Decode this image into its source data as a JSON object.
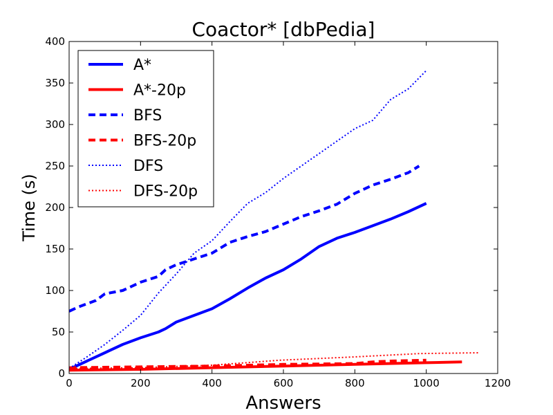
{
  "chart_data": {
    "type": "line",
    "title": "Coactor* [dbPedia]",
    "xlabel": "Answers",
    "ylabel": "Time (s)",
    "xlim": [
      0,
      1200
    ],
    "ylim": [
      0,
      400
    ],
    "xticks": [
      0,
      200,
      400,
      600,
      800,
      1000,
      1200
    ],
    "yticks": [
      0,
      50,
      100,
      150,
      200,
      250,
      300,
      350,
      400
    ],
    "legend_position": "top-left",
    "grid": false,
    "series": [
      {
        "name": "A*",
        "color": "#0000ff",
        "style": "solid",
        "x": [
          0,
          50,
          100,
          150,
          200,
          250,
          270,
          300,
          350,
          400,
          450,
          500,
          550,
          600,
          650,
          700,
          750,
          800,
          850,
          900,
          950,
          1000
        ],
        "y": [
          5,
          15,
          25,
          35,
          43,
          50,
          54,
          62,
          70,
          78,
          90,
          103,
          115,
          125,
          138,
          153,
          163,
          170,
          178,
          186,
          195,
          205
        ]
      },
      {
        "name": "A*-20p",
        "color": "#ff0000",
        "style": "solid",
        "x": [
          0,
          200,
          400,
          600,
          800,
          1000,
          1100
        ],
        "y": [
          4,
          5,
          7,
          9,
          11,
          13,
          14
        ]
      },
      {
        "name": "BFS",
        "color": "#0000ff",
        "style": "dashed",
        "x": [
          0,
          25,
          75,
          100,
          150,
          200,
          250,
          270,
          300,
          350,
          400,
          450,
          500,
          550,
          600,
          650,
          700,
          750,
          800,
          850,
          900,
          950,
          980
        ],
        "y": [
          75,
          80,
          88,
          96,
          100,
          110,
          117,
          125,
          131,
          138,
          145,
          158,
          165,
          171,
          180,
          189,
          196,
          204,
          217,
          227,
          234,
          242,
          250
        ]
      },
      {
        "name": "BFS-20p",
        "color": "#ff0000",
        "style": "dashed",
        "x": [
          0,
          200,
          400,
          600,
          800,
          850,
          900,
          1000
        ],
        "y": [
          7,
          8,
          9,
          11,
          12,
          14,
          15,
          16
        ]
      },
      {
        "name": "DFS",
        "color": "#0000ff",
        "style": "dotted",
        "x": [
          0,
          50,
          100,
          150,
          200,
          250,
          300,
          350,
          400,
          450,
          500,
          550,
          600,
          650,
          700,
          750,
          800,
          850,
          900,
          950,
          1000
        ],
        "y": [
          6,
          20,
          35,
          52,
          70,
          97,
          120,
          145,
          160,
          183,
          205,
          218,
          235,
          250,
          265,
          280,
          295,
          305,
          330,
          343,
          365
        ]
      },
      {
        "name": "DFS-20p",
        "color": "#ff0000",
        "style": "dotted",
        "x": [
          0,
          200,
          400,
          590,
          800,
          980,
          1150
        ],
        "y": [
          6,
          7,
          10,
          16,
          20,
          24,
          25
        ]
      }
    ]
  }
}
